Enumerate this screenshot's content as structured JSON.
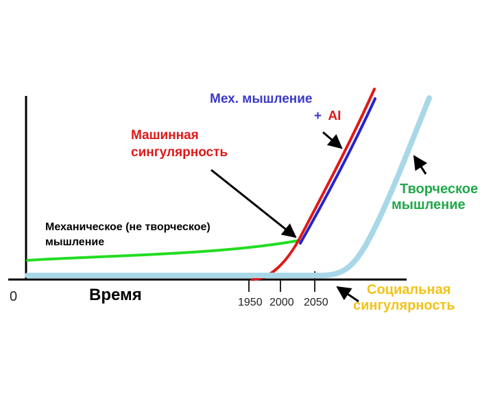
{
  "colors": {
    "axis": "#000000",
    "mechanical": "#22dd22",
    "machine_singularity": "#e01818",
    "mech_plus_ai": "#2424cc",
    "creative": "#a8d8e8",
    "social_singularity": "#f2c318",
    "creative_label": "#21a84a",
    "mech_label": "#3a3ac8",
    "red_label": "#e01818"
  },
  "labels": {
    "origin": "0",
    "x_axis": "Время",
    "mechanical_line1": "Механическое (не творческое)",
    "mechanical_line2": "мышление",
    "machine_line1": "Машинная",
    "machine_line2": "сингулярность",
    "mech_ai_line1": "Мех. мышление",
    "mech_ai_plus": "+",
    "mech_ai_ai": "AI",
    "creative_line1": "Творческое",
    "creative_line2": "мышление",
    "social_line1": "Социальная",
    "social_line2": "сингулярность"
  },
  "ticks": [
    "1950",
    "2000",
    "2050"
  ],
  "icons": {
    "arrows": [
      "arrow-to-machine-singularity",
      "arrow-to-mech-ai-curve",
      "arrow-to-creative-curve",
      "arrow-to-social-singularity"
    ]
  }
}
